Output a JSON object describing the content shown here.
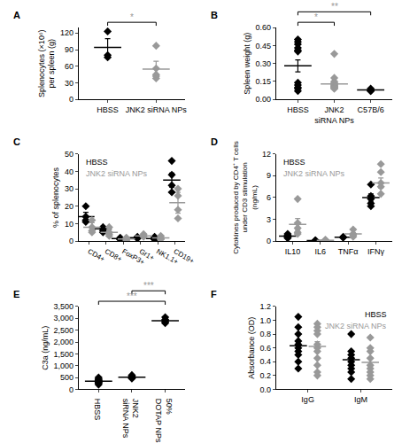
{
  "chart_data": [
    {
      "type": "scatter",
      "title": "A",
      "marker": "diamond",
      "ylabel": [
        "Splenocytes (×10⁶)",
        "per spleen (g)"
      ],
      "categories": [
        "HBSS",
        "JNK2 siRNA NPs"
      ],
      "colors": [
        "#000000",
        "#999999"
      ],
      "points": [
        [
          76,
          80,
          123
        ],
        [
          97,
          56,
          45,
          42,
          38
        ]
      ],
      "mean": [
        94,
        55
      ],
      "error": [
        16,
        14
      ],
      "ylim": [
        0,
        130
      ],
      "yticks": [
        0,
        30,
        60,
        90,
        120
      ],
      "significance": [
        {
          "groups": [
            "HBSS",
            "JNK2 siRNA NPs"
          ],
          "label": "*"
        }
      ]
    },
    {
      "type": "scatter",
      "title": "B",
      "marker": "diamond",
      "ylabel": [
        "Spleen weight (g)"
      ],
      "categories": [
        "HBSS",
        "JNK2 siRNA NPs",
        "C57B/6"
      ],
      "colors": [
        "#000000",
        "#999999",
        "#000000"
      ],
      "points": [
        [
          0.5,
          0.48,
          0.46,
          0.43,
          0.41,
          0.4,
          0.14,
          0.12,
          0.1,
          0.09,
          0.07
        ],
        [
          0.38,
          0.18,
          0.15,
          0.14,
          0.13,
          0.12,
          0.12,
          0.11,
          0.11,
          0.1,
          0.1,
          0.09,
          0.09
        ],
        [
          0.09,
          0.08,
          0.08,
          0.07,
          0.07
        ]
      ],
      "mean": [
        0.28,
        0.13,
        0.08
      ],
      "error": [
        0.05,
        0.02,
        0.005
      ],
      "ylim": [
        0,
        0.6
      ],
      "yticks": [
        {
          "value": 0,
          "label": "0.00"
        },
        {
          "value": 0.15,
          "label": "0.15"
        },
        {
          "value": 0.3,
          "label": "0.30"
        },
        {
          "value": 0.45,
          "label": "0.45"
        },
        {
          "value": 0.6,
          "label": "0.60"
        }
      ],
      "significance": [
        {
          "groups": [
            "HBSS",
            "JNK2 siRNA NPs"
          ],
          "label": "*"
        },
        {
          "groups": [
            "HBSS",
            "C57B/6"
          ],
          "label": "**"
        }
      ]
    },
    {
      "type": "scatter",
      "title": "C",
      "marker": "diamond",
      "legend": "upper left",
      "ylabel": [
        "% of splenocytes"
      ],
      "categories": [
        "CD4+",
        "CD8+",
        "FoxP3+",
        "Gr1+",
        "NK1.1+",
        "CD19+"
      ],
      "series": [
        {
          "name": "HBSS",
          "color": "#000000",
          "points": [
            [
              20,
              14,
              12,
              11
            ],
            [
              8,
              7,
              6,
              5
            ],
            [
              2,
              1.5,
              1,
              1
            ],
            [
              2.5,
              2,
              2,
              1.5
            ],
            [
              2.5,
              2,
              1,
              1
            ],
            [
              46,
              38,
              32,
              28
            ]
          ],
          "mean": [
            14,
            7,
            1.5,
            2,
            1.5,
            35
          ],
          "error": [
            2.5,
            1.5,
            0.5,
            0.5,
            0.5,
            4
          ]
        },
        {
          "name": "JNK2 siRNA NPs",
          "color": "#999999",
          "points": [
            [
              12,
              8,
              6,
              5
            ],
            [
              8,
              5,
              4,
              3
            ],
            [
              2,
              1.5,
              1,
              0.5
            ],
            [
              4,
              3,
              3,
              2.5
            ],
            [
              3,
              2,
              1.5,
              1
            ],
            [
              30,
              26,
              18,
              13
            ]
          ],
          "mean": [
            8,
            5,
            1.2,
            3,
            1.8,
            22
          ],
          "error": [
            2.5,
            1.5,
            0.3,
            0.5,
            0.4,
            6
          ]
        }
      ],
      "ylim": [
        0,
        50
      ],
      "yticks": [
        0,
        10,
        20,
        30,
        40,
        50
      ]
    },
    {
      "type": "scatter",
      "title": "D",
      "marker": "diamond",
      "legend": "upper left",
      "ylabel": [
        "Cytokines produced by CD4⁺ T cells",
        "under CD3 stimulation",
        "(ng/mL)"
      ],
      "categories": [
        "IL10",
        "IL6",
        "TNFα",
        "IFNγ"
      ],
      "series": [
        {
          "name": "HBSS",
          "color": "#000000",
          "points": [
            [
              1.0,
              0.8,
              0.6,
              0.5,
              0.4
            ],
            [
              0.1,
              0.1,
              0.05,
              0.05
            ],
            [
              0.6,
              0.5,
              0.5
            ],
            [
              7.8,
              6.2,
              5.8,
              5.2,
              4.8
            ]
          ],
          "mean": [
            0.7,
            0.08,
            0.55,
            6.0
          ],
          "error": [
            0.15,
            0.02,
            0.05,
            0.5
          ]
        },
        {
          "name": "JNK2 siRNA NPs",
          "color": "#999999",
          "points": [
            [
              5.8,
              2.5,
              1.8,
              1.2,
              1.0
            ],
            [
              0.2,
              0.1,
              0.1,
              0.05
            ],
            [
              1.6,
              1.0,
              0.8,
              0.6
            ],
            [
              10.6,
              9.5,
              8.0,
              7.5,
              6.5
            ]
          ],
          "mean": [
            2.3,
            0.1,
            1.0,
            8.0
          ],
          "error": [
            0.8,
            0.03,
            0.2,
            0.7
          ]
        }
      ],
      "ylim": [
        0,
        12
      ],
      "yticks": [
        0,
        3,
        6,
        9,
        12
      ]
    },
    {
      "type": "scatter",
      "title": "E",
      "marker": "diamond",
      "ylabel": [
        "C3a (ng/mL)"
      ],
      "categories": [
        "HBSS",
        "JNK2 siRNA NPs",
        "50% DOTAP NPs"
      ],
      "colors": [
        "#000000",
        "#000000",
        "#000000"
      ],
      "points": [
        [
          500,
          450,
          400,
          380,
          350,
          320,
          300,
          280,
          250,
          200
        ],
        [
          600,
          550,
          500,
          480,
          460
        ],
        [
          3050,
          2950,
          2900,
          2850,
          2800
        ]
      ],
      "mean": [
        340,
        510,
        2900
      ],
      "error": [
        30,
        30,
        50
      ],
      "ylim": [
        0,
        3500
      ],
      "yticks": [
        0,
        500,
        {
          "value": 1000,
          "label": "1,000"
        },
        {
          "value": 1500,
          "label": "1,500"
        },
        {
          "value": 2000,
          "label": "2,000"
        },
        {
          "value": 2500,
          "label": "2,500"
        },
        {
          "value": 3000,
          "label": "3,000"
        },
        {
          "value": 3500,
          "label": "3,500"
        }
      ],
      "significance": [
        {
          "groups": [
            "HBSS",
            "50% DOTAP NPs"
          ],
          "label": "***"
        },
        {
          "groups": [
            "JNK2 siRNA NPs",
            "50% DOTAP NPs"
          ],
          "label": "***"
        }
      ]
    },
    {
      "type": "scatter",
      "title": "F",
      "marker": "diamond",
      "legend": "upper right",
      "ylabel": [
        "Absorbance (OD)"
      ],
      "categories": [
        "IgG",
        "IgM"
      ],
      "series": [
        {
          "name": "HBSS",
          "color": "#000000",
          "points": [
            [
              1.05,
              0.9,
              0.8,
              0.7,
              0.65,
              0.6,
              0.55,
              0.5,
              0.4,
              0.3
            ],
            [
              0.8,
              0.55,
              0.5,
              0.45,
              0.4,
              0.35,
              0.3,
              0.25,
              0.15
            ]
          ],
          "mean": [
            0.63,
            0.43
          ],
          "error": [
            0.07,
            0.07
          ]
        },
        {
          "name": "JNK2 siRNA NPs",
          "color": "#999999",
          "points": [
            [
              0.95,
              0.9,
              0.85,
              0.8,
              0.65,
              0.6,
              0.55,
              0.45,
              0.35,
              0.25,
              0.2
            ],
            [
              0.75,
              0.6,
              0.55,
              0.45,
              0.35,
              0.3,
              0.25,
              0.2,
              0.15
            ]
          ],
          "mean": [
            0.62,
            0.39
          ],
          "error": [
            0.07,
            0.06
          ]
        }
      ],
      "ylim": [
        0,
        1.2
      ],
      "yticks": [
        {
          "value": 0,
          "label": "0.0"
        },
        0.2,
        0.4,
        0.6,
        0.8,
        {
          "value": 1,
          "label": "1.0"
        },
        {
          "value": 1.2,
          "label": "1.2"
        }
      ]
    }
  ]
}
